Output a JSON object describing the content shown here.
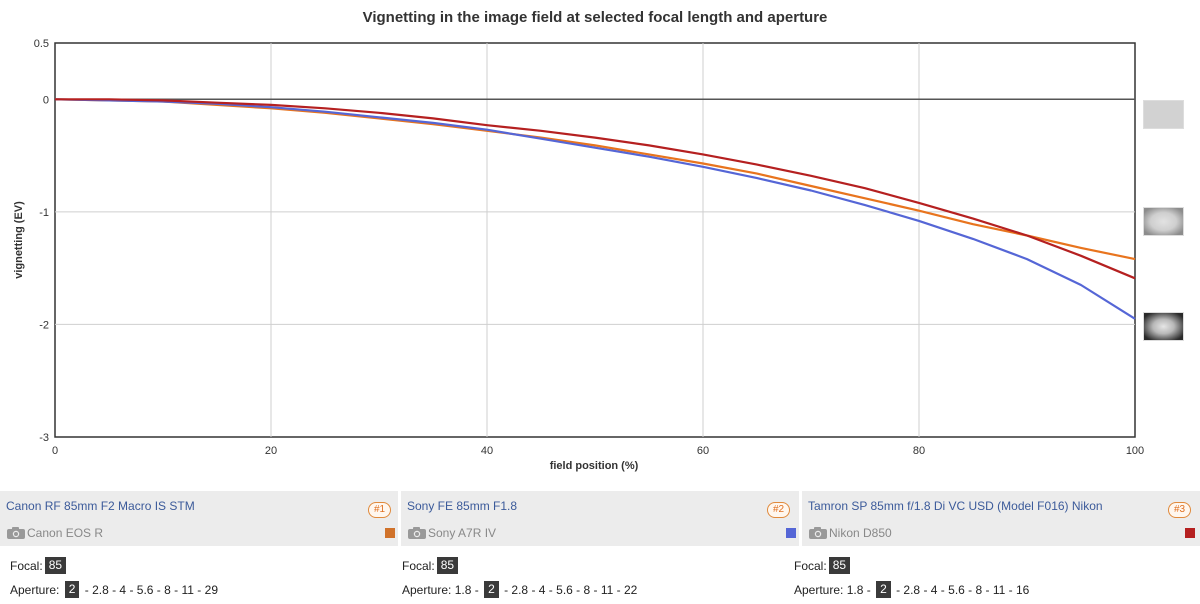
{
  "chart_data": {
    "type": "line",
    "title": "Vignetting in the image field at selected focal length and aperture",
    "xlabel": "field position (%)",
    "ylabel": "vignetting (EV)",
    "xlim": [
      0,
      100
    ],
    "ylim": [
      -3,
      0.5
    ],
    "xticks": [
      0,
      20,
      40,
      60,
      80,
      100
    ],
    "yticks": [
      0.5,
      0,
      -1,
      -2,
      -3
    ],
    "ytick_labels": [
      "0.5",
      "0",
      "-1",
      "-2",
      "-3"
    ],
    "grid": true,
    "series": [
      {
        "color": "#e8741e",
        "x": [
          0,
          5,
          10,
          15,
          20,
          25,
          30,
          35,
          40,
          45,
          50,
          55,
          60,
          65,
          70,
          75,
          80,
          85,
          90,
          95,
          100
        ],
        "values": [
          0,
          -0.01,
          -0.02,
          -0.05,
          -0.08,
          -0.12,
          -0.17,
          -0.22,
          -0.28,
          -0.34,
          -0.41,
          -0.49,
          -0.57,
          -0.66,
          -0.77,
          -0.88,
          -0.99,
          -1.11,
          -1.21,
          -1.32,
          -1.42
        ]
      },
      {
        "color": "#5566d6",
        "x": [
          0,
          5,
          10,
          15,
          20,
          25,
          30,
          35,
          40,
          45,
          50,
          55,
          60,
          65,
          70,
          75,
          80,
          85,
          90,
          95,
          100
        ],
        "values": [
          0,
          -0.01,
          -0.02,
          -0.04,
          -0.07,
          -0.11,
          -0.16,
          -0.21,
          -0.27,
          -0.35,
          -0.43,
          -0.51,
          -0.6,
          -0.7,
          -0.81,
          -0.94,
          -1.08,
          -1.24,
          -1.42,
          -1.65,
          -1.95
        ]
      },
      {
        "color": "#b52020",
        "x": [
          0,
          5,
          10,
          15,
          20,
          25,
          30,
          35,
          40,
          45,
          50,
          55,
          60,
          65,
          70,
          75,
          80,
          85,
          90,
          95,
          100
        ],
        "values": [
          0,
          0,
          -0.01,
          -0.03,
          -0.05,
          -0.08,
          -0.12,
          -0.17,
          -0.23,
          -0.28,
          -0.34,
          -0.41,
          -0.49,
          -0.58,
          -0.68,
          -0.79,
          -0.92,
          -1.06,
          -1.21,
          -1.39,
          -1.59
        ]
      }
    ]
  },
  "lenses": [
    {
      "name": "Canon RF 85mm F2 Macro IS STM",
      "badge": "#1",
      "camera": "Canon EOS R",
      "color": "#d0722a",
      "focal_label": "Focal:",
      "focal_value": "85",
      "aperture_label": "Aperture:",
      "apertures": [
        "2",
        "2.8",
        "4",
        "5.6",
        "8",
        "11",
        "29"
      ],
      "selected_aperture": "2"
    },
    {
      "name": "Sony FE 85mm F1.8",
      "badge": "#2",
      "camera": "Sony A7R IV",
      "color": "#5566d6",
      "focal_label": "Focal:",
      "focal_value": "85",
      "aperture_label": "Aperture:",
      "apertures": [
        "1.8",
        "2",
        "2.8",
        "4",
        "5.6",
        "8",
        "11",
        "22"
      ],
      "selected_aperture": "2"
    },
    {
      "name": "Tamron SP 85mm f/1.8 Di VC USD (Model F016) Nikon",
      "badge": "#3",
      "camera": "Nikon D850",
      "color": "#b52020",
      "focal_label": "Focal:",
      "focal_value": "85",
      "aperture_label": "Aperture:",
      "apertures": [
        "1.8",
        "2",
        "2.8",
        "4",
        "5.6",
        "8",
        "11",
        "16"
      ],
      "selected_aperture": "2"
    }
  ],
  "icons": {
    "camera": "camera-icon"
  }
}
